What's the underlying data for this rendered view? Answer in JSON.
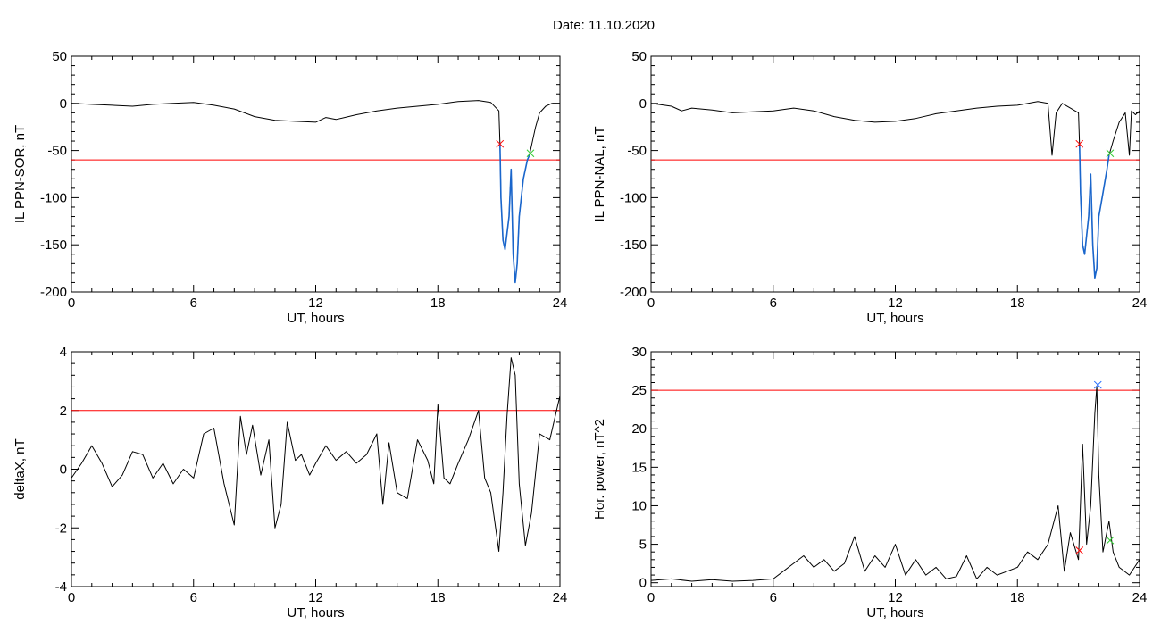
{
  "title": "Date:  11.10.2020",
  "colors": {
    "threshold": "#ff0000",
    "start_marker": "#ff0000",
    "end_marker": "#33cc33",
    "peak_marker": "#1a66ff",
    "highlight": "#1a66cc",
    "trace": "#000000"
  },
  "chart_data": [
    {
      "type": "line",
      "title": "",
      "xlabel": "UT, hours",
      "ylabel": "IL PPN-SOR, nT",
      "xlim": [
        0,
        24
      ],
      "ylim": [
        -200,
        50
      ],
      "xticks": [
        0,
        6,
        12,
        18,
        24
      ],
      "yticks": [
        -200,
        -150,
        -100,
        -50,
        0,
        50
      ],
      "threshold": -60,
      "grid": false,
      "series": [
        {
          "x": [
            0,
            1,
            2,
            3,
            4,
            5,
            6,
            7,
            8,
            9,
            10,
            11,
            12,
            12.5,
            13,
            14,
            15,
            16,
            17,
            18,
            19,
            20,
            20.6,
            21.0,
            21.05,
            21.1,
            21.2,
            21.3,
            21.5,
            21.6,
            21.7,
            21.8,
            21.9,
            22.0,
            22.1,
            22.2,
            22.4,
            22.5,
            22.6,
            22.8,
            23.0,
            23.3,
            23.6,
            24
          ],
          "y": [
            0,
            -1,
            -2,
            -3,
            -1,
            0,
            1,
            -2,
            -6,
            -14,
            -18,
            -19,
            -20,
            -15,
            -17,
            -12,
            -8,
            -5,
            -3,
            -1,
            2,
            3,
            1,
            -8,
            -42,
            -100,
            -145,
            -155,
            -120,
            -70,
            -160,
            -190,
            -170,
            -120,
            -100,
            -80,
            -60,
            -55,
            -45,
            -25,
            -10,
            -3,
            0,
            0
          ]
        }
      ],
      "highlight": {
        "x_start": 21.05,
        "x_end": 22.55
      },
      "markers": [
        {
          "x": 21.05,
          "y": -43,
          "role": "start"
        },
        {
          "x": 22.55,
          "y": -53,
          "role": "end"
        }
      ]
    },
    {
      "type": "line",
      "title": "",
      "xlabel": "UT, hours",
      "ylabel": "IL PPN-NAL, nT",
      "xlim": [
        0,
        24
      ],
      "ylim": [
        -200,
        50
      ],
      "xticks": [
        0,
        6,
        12,
        18,
        24
      ],
      "yticks": [
        -200,
        -150,
        -100,
        -50,
        0,
        50
      ],
      "threshold": -60,
      "grid": false,
      "series": [
        {
          "x": [
            0,
            1,
            1.5,
            2,
            3,
            4,
            5,
            6,
            7,
            8,
            9,
            10,
            11,
            12,
            13,
            14,
            15,
            16,
            17,
            18,
            19,
            19.5,
            19.7,
            19.9,
            20.2,
            20.6,
            21.0,
            21.05,
            21.1,
            21.2,
            21.3,
            21.5,
            21.6,
            21.7,
            21.8,
            21.9,
            22.0,
            22.2,
            22.4,
            22.5,
            22.7,
            23.0,
            23.3,
            23.5,
            23.6,
            23.8,
            24
          ],
          "y": [
            0,
            -3,
            -8,
            -5,
            -7,
            -10,
            -9,
            -8,
            -5,
            -8,
            -14,
            -18,
            -20,
            -19,
            -16,
            -11,
            -8,
            -5,
            -3,
            -2,
            2,
            0,
            -55,
            -10,
            0,
            -5,
            -10,
            -45,
            -95,
            -150,
            -160,
            -120,
            -75,
            -150,
            -185,
            -175,
            -120,
            -95,
            -70,
            -55,
            -40,
            -20,
            -10,
            -55,
            -8,
            -12,
            -8
          ]
        }
      ],
      "highlight": {
        "x_start": 21.05,
        "x_end": 22.55
      },
      "markers": [
        {
          "x": 21.05,
          "y": -43,
          "role": "start"
        },
        {
          "x": 22.55,
          "y": -53,
          "role": "end"
        }
      ]
    },
    {
      "type": "line",
      "title": "",
      "xlabel": "UT, hours",
      "ylabel": "deltaX, nT",
      "xlim": [
        0,
        24
      ],
      "ylim": [
        -4,
        4
      ],
      "xticks": [
        0,
        6,
        12,
        18,
        24
      ],
      "yticks": [
        -4,
        -2,
        0,
        2,
        4
      ],
      "threshold": 2,
      "grid": false,
      "series": [
        {
          "x": [
            0,
            0.5,
            1.0,
            1.5,
            2.0,
            2.5,
            3.0,
            3.5,
            4.0,
            4.5,
            5.0,
            5.5,
            6.0,
            6.5,
            7.0,
            7.5,
            8.0,
            8.3,
            8.6,
            8.9,
            9.3,
            9.7,
            10.0,
            10.3,
            10.6,
            11.0,
            11.3,
            11.7,
            12.0,
            12.5,
            13.0,
            13.5,
            14.0,
            14.5,
            15.0,
            15.3,
            15.6,
            16.0,
            16.5,
            17.0,
            17.5,
            17.8,
            18.0,
            18.3,
            18.6,
            19.0,
            19.5,
            20.0,
            20.3,
            20.6,
            21.0,
            21.2,
            21.4,
            21.6,
            21.8,
            22.0,
            22.3,
            22.6,
            23.0,
            23.5,
            24.0
          ],
          "y": [
            -0.3,
            0.2,
            0.8,
            0.2,
            -0.6,
            -0.2,
            0.6,
            0.5,
            -0.3,
            0.2,
            -0.5,
            0.0,
            -0.3,
            1.2,
            1.4,
            -0.5,
            -1.9,
            1.8,
            0.5,
            1.5,
            -0.2,
            1.0,
            -2.0,
            -1.2,
            1.6,
            0.3,
            0.5,
            -0.2,
            0.2,
            0.8,
            0.3,
            0.6,
            0.2,
            0.5,
            1.2,
            -1.2,
            0.9,
            -0.8,
            -1.0,
            1.0,
            0.3,
            -0.5,
            2.2,
            -0.3,
            -0.5,
            0.2,
            1.0,
            2.0,
            -0.3,
            -0.8,
            -2.8,
            -0.8,
            1.8,
            3.8,
            3.2,
            -0.5,
            -2.6,
            -1.5,
            1.2,
            1.0,
            2.5
          ]
        }
      ]
    },
    {
      "type": "line",
      "title": "",
      "xlabel": "UT, hours",
      "ylabel": "Hor. power, nT^2",
      "xlim": [
        0,
        24
      ],
      "ylim": [
        -0.5,
        30
      ],
      "xticks": [
        0,
        6,
        12,
        18,
        24
      ],
      "yticks": [
        0,
        5,
        10,
        15,
        20,
        25,
        30
      ],
      "threshold": 25,
      "grid": false,
      "series": [
        {
          "x": [
            0,
            1,
            2,
            3,
            4,
            5,
            6,
            6.5,
            7,
            7.5,
            8,
            8.5,
            9,
            9.5,
            10,
            10.5,
            11,
            11.5,
            12,
            12.5,
            13,
            13.5,
            14,
            14.5,
            15,
            15.5,
            16,
            16.5,
            17,
            17.5,
            18,
            18.5,
            19,
            19.5,
            20.0,
            20.3,
            20.6,
            21.0,
            21.2,
            21.4,
            21.6,
            21.8,
            21.9,
            22.0,
            22.2,
            22.5,
            22.7,
            23.0,
            23.5,
            24.0
          ],
          "y": [
            0.3,
            0.5,
            0.2,
            0.4,
            0.2,
            0.3,
            0.5,
            1.5,
            2.5,
            3.5,
            2.0,
            3.0,
            1.5,
            2.5,
            6.0,
            1.5,
            3.5,
            2.0,
            5.0,
            1.0,
            3.0,
            1.0,
            2.0,
            0.5,
            0.8,
            3.5,
            0.5,
            2.0,
            1.0,
            1.5,
            2.0,
            4.0,
            3.0,
            5.0,
            10.0,
            1.5,
            6.5,
            3.0,
            18.0,
            5.0,
            10.0,
            22.0,
            25.5,
            14.0,
            4.0,
            8.0,
            4.0,
            2.0,
            1.0,
            3.0
          ]
        }
      ],
      "markers": [
        {
          "x": 21.05,
          "y": 4.2,
          "role": "start"
        },
        {
          "x": 21.95,
          "y": 25.7,
          "role": "peak"
        },
        {
          "x": 22.55,
          "y": 5.5,
          "role": "end"
        }
      ]
    }
  ]
}
